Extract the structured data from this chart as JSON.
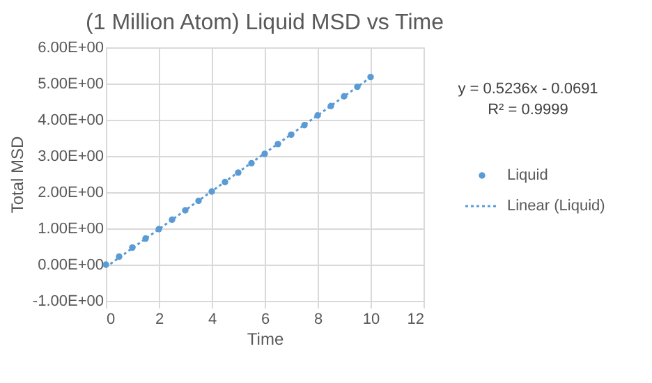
{
  "chart_data": {
    "type": "scatter",
    "title": "(1 Million Atom) Liquid MSD vs Time",
    "xlabel": "Time",
    "ylabel": "Total MSD",
    "annotations": [
      "y = 0.5236x - 0.0691",
      "R² = 0.9999"
    ],
    "series": [
      {
        "name": "Liquid",
        "color": "#5b9bd5",
        "type": "scatter",
        "x": [
          0,
          0.5,
          1,
          1.5,
          2,
          2.5,
          3,
          3.5,
          4,
          4.5,
          5,
          5.5,
          6,
          6.5,
          7,
          7.5,
          8,
          8.5,
          9,
          9.5,
          10
        ],
        "values": [
          0,
          0.22,
          0.47,
          0.72,
          0.98,
          1.24,
          1.5,
          1.76,
          2.02,
          2.28,
          2.54,
          2.8,
          3.06,
          3.33,
          3.59,
          3.85,
          4.12,
          4.38,
          4.65,
          4.91,
          5.18
        ]
      },
      {
        "name": "Linear (Liquid)",
        "color": "#5b9bd5",
        "type": "line",
        "line_style": "dotted",
        "marker": "none",
        "x": [
          0,
          10
        ],
        "values": [
          -0.07,
          5.17
        ]
      }
    ],
    "xlim": [
      0,
      12
    ],
    "xticks": [
      0,
      2,
      4,
      6,
      8,
      10,
      12
    ],
    "ylim": [
      -1,
      6
    ],
    "yticks": [
      {
        "value": -1,
        "label": "-1.00E+00"
      },
      {
        "value": 0,
        "label": "0.00E+00"
      },
      {
        "value": 1,
        "label": "1.00E+00"
      },
      {
        "value": 2,
        "label": "2.00E+00"
      },
      {
        "value": 3,
        "label": "3.00E+00"
      },
      {
        "value": 4,
        "label": "4.00E+00"
      },
      {
        "value": 5,
        "label": "5.00E+00"
      },
      {
        "value": 6,
        "label": "6.00E+00"
      }
    ],
    "grid": true,
    "legend": "right",
    "marker": "circle"
  }
}
